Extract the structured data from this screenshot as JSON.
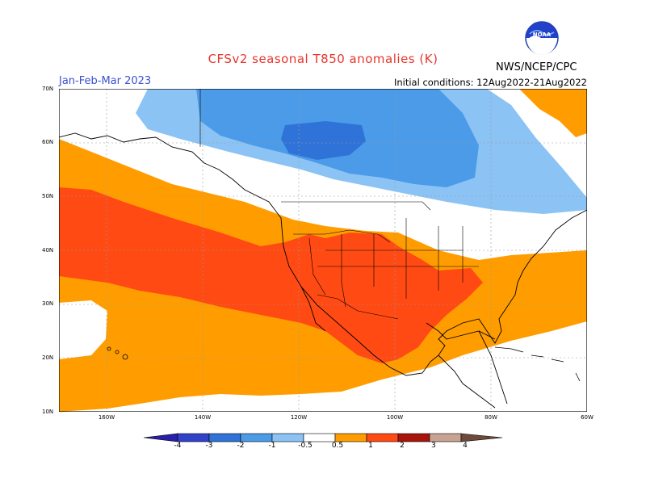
{
  "title": "CFSv2 seasonal T850 anomalies (K)",
  "period": "Jan-Feb-Mar 2023",
  "initial_conditions": "Initial conditions: 12Aug2022-21Aug2022",
  "agency": "NWS/NCEP/CPC",
  "logo_text": "NOAA",
  "lat_labels": [
    "70N",
    "60N",
    "50N",
    "40N",
    "30N",
    "20N",
    "10N"
  ],
  "lon_labels": [
    "160W",
    "140W",
    "120W",
    "100W",
    "80W",
    "60W"
  ],
  "colorbar": {
    "labels": [
      "-4",
      "-3",
      "-2",
      "-1",
      "-0.5",
      "0.5",
      "1",
      "2",
      "3",
      "4"
    ],
    "colors": [
      "#2a1fa8",
      "#3142c8",
      "#2f73d8",
      "#4b9be8",
      "#8cc3f5",
      "#ffffff",
      "#ff9d00",
      "#ff4a14",
      "#a8140c",
      "#c8a394",
      "#6d4a3a"
    ]
  }
}
